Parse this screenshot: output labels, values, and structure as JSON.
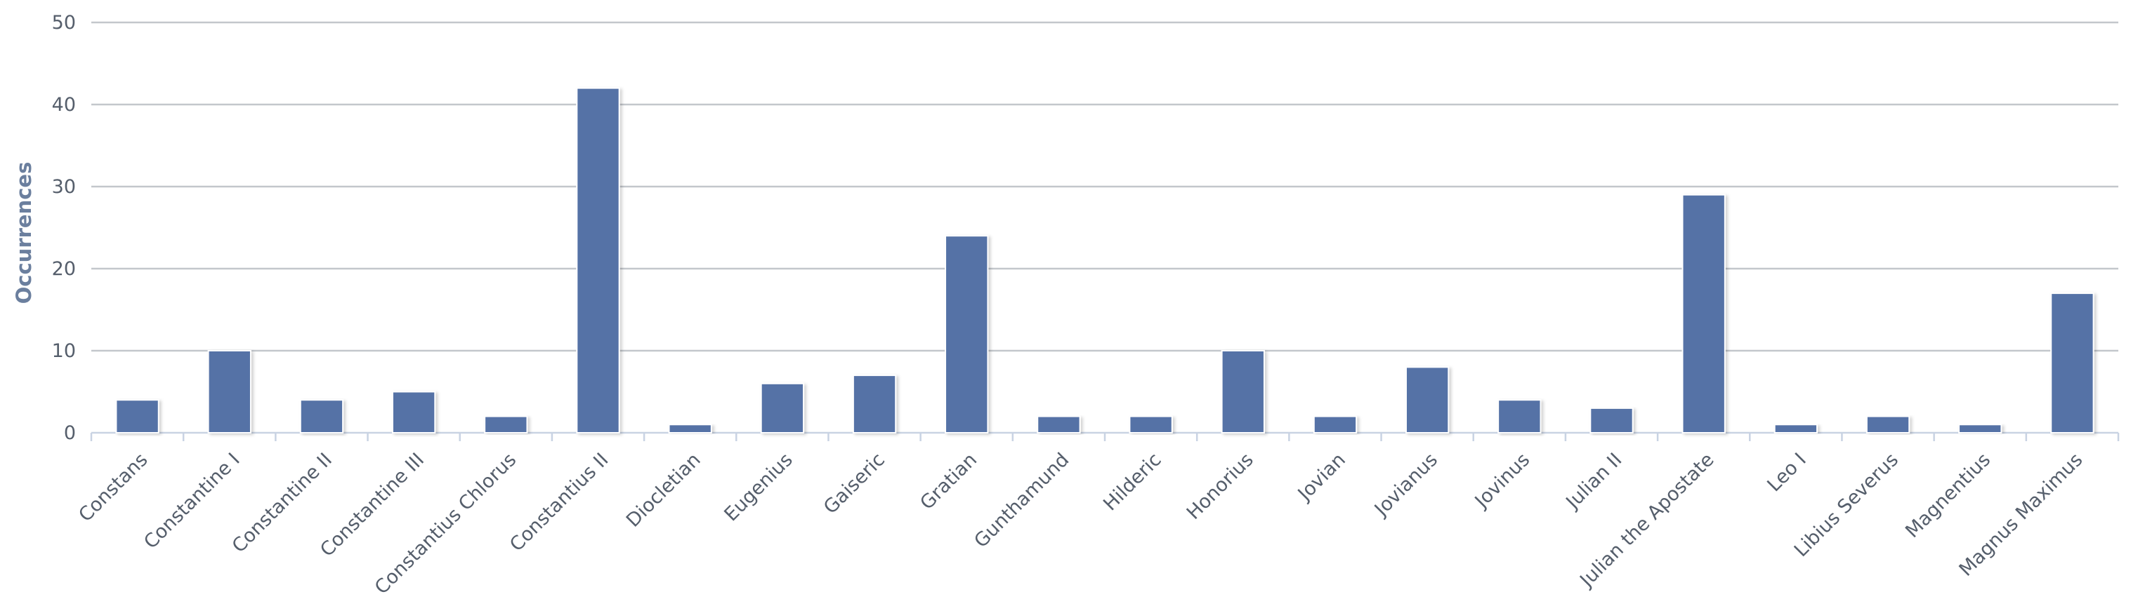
{
  "chart_data": {
    "type": "bar",
    "title": "",
    "xlabel": "",
    "ylabel": "Occurrences",
    "ylim": [
      0,
      50
    ],
    "yticks": [
      0,
      10,
      20,
      30,
      40,
      50
    ],
    "grid": true,
    "legend": "none",
    "bar_color": "#5572a6",
    "grid_color": "#c3c7cc",
    "categories": [
      "Constans",
      "Constantine I",
      "Constantine II",
      "Constantine III",
      "Constantius Chlorus",
      "Constantius II",
      "Diocletian",
      "Eugenius",
      "Gaiseric",
      "Gratian",
      "Gunthamund",
      "Hilderic",
      "Honorius",
      "Jovian",
      "Jovianus",
      "Jovinus",
      "Julian II",
      "Julian the Apostate",
      "Leo I",
      "Libius Severus",
      "Magnentius",
      "Magnus Maximus"
    ],
    "values": [
      4,
      10,
      4,
      5,
      2,
      42,
      1,
      6,
      7,
      24,
      2,
      2,
      10,
      2,
      8,
      4,
      3,
      29,
      1,
      2,
      1,
      17
    ]
  }
}
